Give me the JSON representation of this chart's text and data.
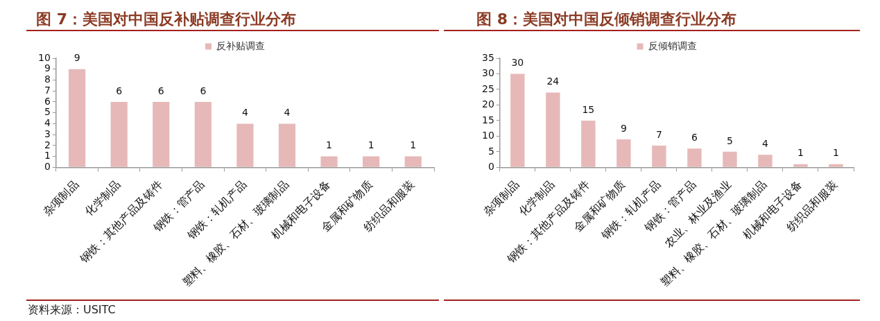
{
  "chart_data": [
    {
      "type": "bar",
      "title": "图 7：美国对中国反补贴调查行业分布",
      "categories": [
        "杂项制品",
        "化学制品",
        "钢铁：其他产品及铸件",
        "钢铁：管产品",
        "钢铁：轧机产品",
        "塑料、橡胶、石材、玻璃制品",
        "机械和电子设备",
        "金属和矿物质",
        "纺织品和服装"
      ],
      "series": [
        {
          "name": "反补贴调查",
          "color": "#e6b9b8",
          "values": [
            9,
            6,
            6,
            6,
            4,
            4,
            1,
            1,
            1
          ]
        }
      ],
      "ylim": [
        0,
        10
      ],
      "yticks": [
        0,
        1,
        2,
        3,
        4,
        5,
        6,
        7,
        8,
        9,
        10
      ],
      "grid": false,
      "legend": "top",
      "data_labels": true,
      "annotations": [
        "资料来源：USITC"
      ]
    },
    {
      "type": "bar",
      "title": "图 8：美国对中国反倾销调查行业分布",
      "categories": [
        "杂项制品",
        "化学制品",
        "钢铁：其他产品及铸件",
        "金属和矿物质",
        "钢铁：轧机产品",
        "钢铁：管产品",
        "农业、林业及渔业",
        "塑料、橡胶、石材、玻璃制品",
        "机械和电子设备",
        "纺织品和服装"
      ],
      "series": [
        {
          "name": "反倾销调查",
          "color": "#e6b9b8",
          "values": [
            30,
            24,
            15,
            9,
            7,
            6,
            5,
            4,
            1,
            1
          ]
        }
      ],
      "ylim": [
        0,
        35
      ],
      "yticks": [
        0,
        5,
        10,
        15,
        20,
        25,
        30,
        35
      ],
      "grid": false,
      "legend": "top",
      "data_labels": true
    }
  ]
}
